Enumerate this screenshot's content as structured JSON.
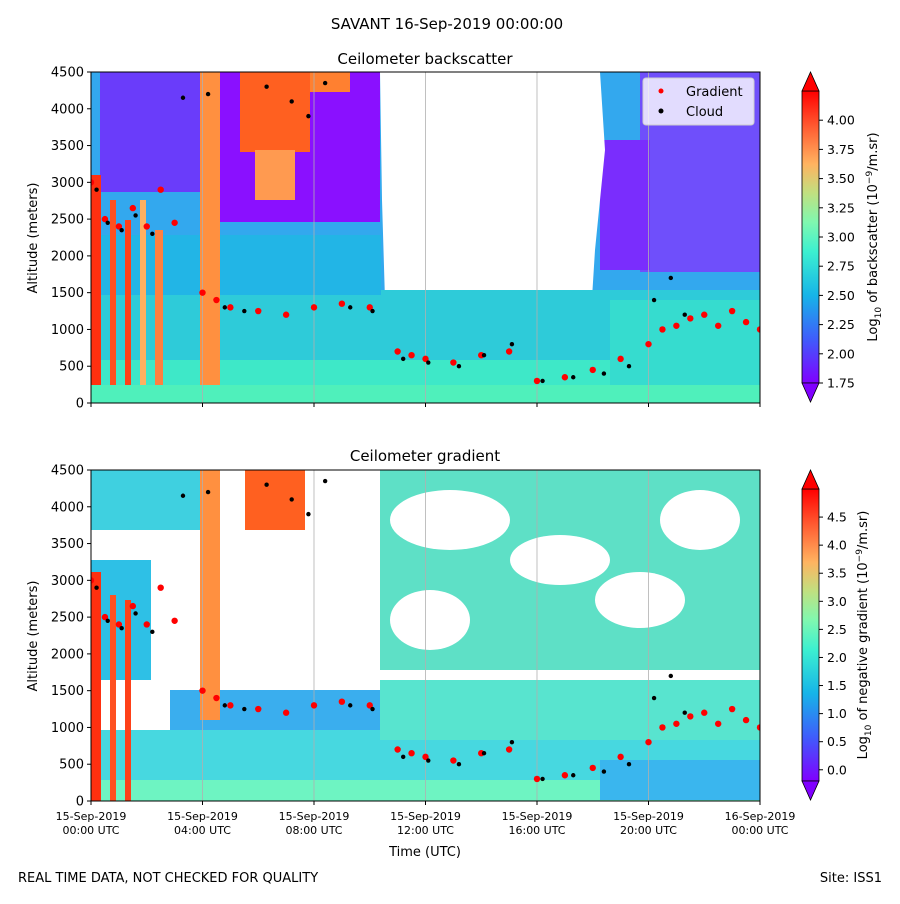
{
  "suptitle": "SAVANT 16-Sep-2019 00:00:00",
  "footer_left": "REAL TIME DATA, NOT CHECKED FOR QUALITY",
  "footer_right": "Site: ISS1",
  "time_axis": {
    "label": "Time (UTC)",
    "ticks": [
      {
        "line1": "15-Sep-2019",
        "line2": "00:00 UTC"
      },
      {
        "line1": "15-Sep-2019",
        "line2": "04:00 UTC"
      },
      {
        "line1": "15-Sep-2019",
        "line2": "08:00 UTC"
      },
      {
        "line1": "15-Sep-2019",
        "line2": "12:00 UTC"
      },
      {
        "line1": "15-Sep-2019",
        "line2": "16:00 UTC"
      },
      {
        "line1": "15-Sep-2019",
        "line2": "20:00 UTC"
      },
      {
        "line1": "16-Sep-2019",
        "line2": "00:00 UTC"
      }
    ]
  },
  "colors": {
    "gradient_marker": "#ff0000",
    "cloud_marker": "#000000",
    "gridline": "#b0b0b0"
  },
  "chart_data": [
    {
      "type": "heatmap",
      "title": "Ceilometer backscatter",
      "xlabel": "Time (UTC)",
      "ylabel": "Altitude (meters)",
      "xlim_hours": [
        0,
        24
      ],
      "ylim": [
        0,
        4500
      ],
      "yticks": [
        "0",
        "500",
        "1000",
        "1500",
        "2000",
        "2500",
        "3000",
        "3500",
        "4000",
        "4500"
      ],
      "colorbar": {
        "label_prefix": "Log",
        "label_sub": "10",
        "label_mid": " of backscatter (10",
        "label_sup": "−9",
        "label_suffix": "/m.sr)",
        "range": [
          1.75,
          4.25
        ],
        "ticks": [
          "1.75",
          "2.00",
          "2.25",
          "2.50",
          "2.75",
          "3.00",
          "3.25",
          "3.50",
          "3.75",
          "4.00"
        ]
      },
      "legend": {
        "placement": "top-right",
        "entries": [
          "Gradient",
          "Cloud"
        ]
      },
      "series": [
        {
          "name": "Gradient",
          "hours": [
            0,
            0.5,
            1,
            1.5,
            2,
            2.5,
            3,
            4,
            4.5,
            5,
            6,
            7,
            8,
            9,
            10,
            11,
            11.5,
            12,
            13,
            14,
            15,
            16,
            17,
            18,
            19,
            20,
            20.5,
            21,
            21.5,
            22,
            22.5,
            23,
            23.5,
            24
          ],
          "altitudes": [
            3000,
            2500,
            2400,
            2650,
            2400,
            2900,
            2450,
            1500,
            1400,
            1300,
            1250,
            1200,
            1300,
            1350,
            1300,
            700,
            650,
            600,
            550,
            650,
            700,
            300,
            350,
            450,
            600,
            800,
            1000,
            1050,
            1150,
            1200,
            1050,
            1250,
            1100,
            1000
          ]
        },
        {
          "name": "Cloud",
          "hours": [
            0.2,
            0.6,
            1.1,
            1.6,
            2.2,
            3.3,
            4.2,
            4.8,
            5.5,
            6.3,
            7.2,
            7.8,
            8.4,
            9.3,
            10.1,
            11.2,
            12.1,
            13.2,
            14.1,
            15.1,
            16.2,
            17.3,
            18.4,
            19.3,
            20.2,
            20.8,
            21.3
          ],
          "altitudes": [
            2900,
            2450,
            2350,
            2550,
            2300,
            4150,
            4200,
            1300,
            1250,
            4300,
            4100,
            3900,
            4350,
            1300,
            1250,
            600,
            550,
            500,
            650,
            800,
            300,
            350,
            400,
            500,
            1400,
            1700,
            1200
          ]
        }
      ]
    },
    {
      "type": "heatmap",
      "title": "Ceilometer gradient",
      "xlabel": "Time (UTC)",
      "ylabel": "Altitude (meters)",
      "xlim_hours": [
        0,
        24
      ],
      "ylim": [
        0,
        4500
      ],
      "yticks": [
        "0",
        "500",
        "1000",
        "1500",
        "2000",
        "2500",
        "3000",
        "3500",
        "4000",
        "4500"
      ],
      "colorbar": {
        "label_prefix": "Log",
        "label_sub": "10",
        "label_mid": " of negative gradient (10",
        "label_sup": "−9",
        "label_suffix": "/m.sr)",
        "range": [
          -0.2,
          5.0
        ],
        "ticks": [
          "0.0",
          "0.5",
          "1.0",
          "1.5",
          "2.0",
          "2.5",
          "3.0",
          "3.5",
          "4.0",
          "4.5"
        ]
      },
      "series": [
        {
          "name": "Gradient",
          "hours": [
            0,
            0.5,
            1,
            1.5,
            2,
            2.5,
            3,
            4,
            4.5,
            5,
            6,
            7,
            8,
            9,
            10,
            11,
            11.5,
            12,
            13,
            14,
            15,
            16,
            17,
            18,
            19,
            20,
            20.5,
            21,
            21.5,
            22,
            22.5,
            23,
            23.5,
            24
          ],
          "altitudes": [
            3000,
            2500,
            2400,
            2650,
            2400,
            2900,
            2450,
            1500,
            1400,
            1300,
            1250,
            1200,
            1300,
            1350,
            1300,
            700,
            650,
            600,
            550,
            650,
            700,
            300,
            350,
            450,
            600,
            800,
            1000,
            1050,
            1150,
            1200,
            1050,
            1250,
            1100,
            1000
          ]
        },
        {
          "name": "Cloud",
          "hours": [
            0.2,
            0.6,
            1.1,
            1.6,
            2.2,
            3.3,
            4.2,
            4.8,
            5.5,
            6.3,
            7.2,
            7.8,
            8.4,
            9.3,
            10.1,
            11.2,
            12.1,
            13.2,
            14.1,
            15.1,
            16.2,
            17.3,
            18.4,
            19.3,
            20.2,
            20.8,
            21.3
          ],
          "altitudes": [
            2900,
            2450,
            2350,
            2550,
            2300,
            4150,
            4200,
            1300,
            1250,
            4300,
            4100,
            3900,
            4350,
            1300,
            1250,
            600,
            550,
            500,
            650,
            800,
            300,
            350,
            400,
            500,
            1400,
            1700,
            1200
          ]
        }
      ]
    }
  ]
}
